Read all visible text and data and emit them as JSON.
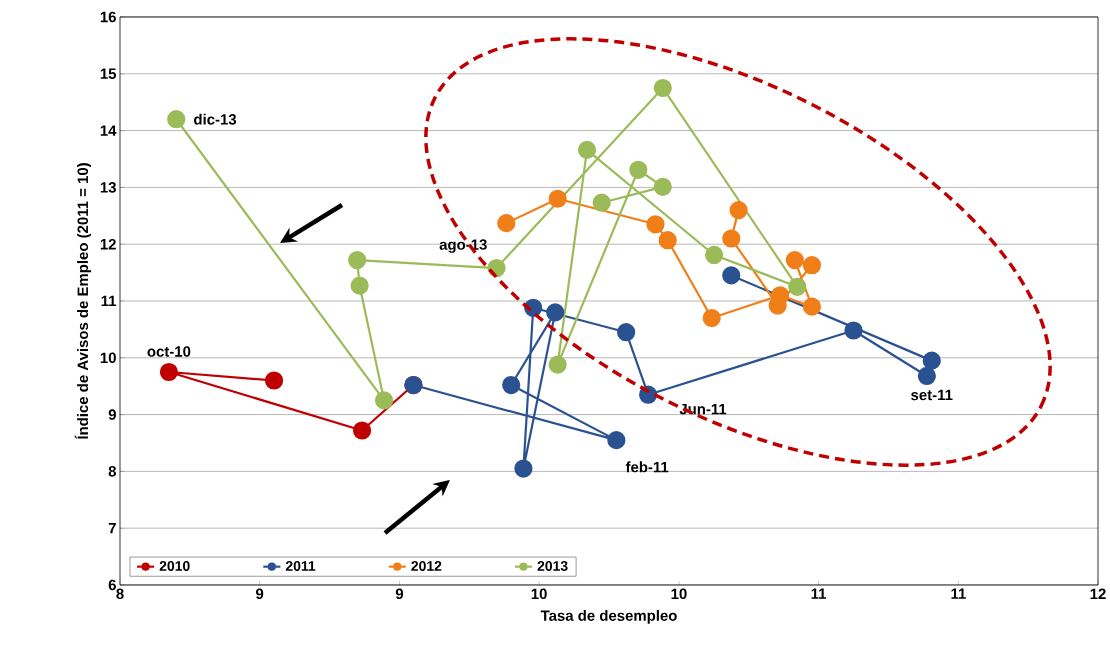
{
  "chart_data": {
    "type": "line",
    "xlabel": "Tasa de desempleo",
    "ylabel": "Índice de Avisos de Empleo (2011 = 10)",
    "xlim": [
      8,
      12
    ],
    "ylim": [
      6,
      16
    ],
    "xticks": [
      {
        "value": 8,
        "label": "8"
      },
      {
        "value": 8.571,
        "label": "9"
      },
      {
        "value": 9.143,
        "label": "9"
      },
      {
        "value": 9.714,
        "label": "10"
      },
      {
        "value": 10.286,
        "label": "10"
      },
      {
        "value": 10.857,
        "label": "11"
      },
      {
        "value": 11.429,
        "label": "11"
      },
      {
        "value": 12,
        "label": "12"
      }
    ],
    "yticks": [
      6,
      7,
      8,
      9,
      10,
      11,
      12,
      13,
      14,
      15,
      16
    ],
    "grid": "y",
    "legend": "bottom",
    "marker": "circle",
    "line_style": "solid",
    "series": [
      {
        "name": "2010",
        "color": "#c00000",
        "x": [
          8.63,
          8.2,
          8.99,
          9.2
        ],
        "values": [
          9.6,
          9.75,
          8.72,
          9.52
        ]
      },
      {
        "name": "2011",
        "color": "#2a5291",
        "x": [
          9.2,
          10.03,
          9.6,
          9.78,
          9.65,
          9.69,
          10.07,
          10.16,
          11.0,
          11.3,
          11.32,
          10.5
        ],
        "values": [
          9.52,
          8.55,
          9.52,
          10.8,
          8.05,
          10.88,
          10.45,
          9.35,
          10.48,
          9.68,
          9.95,
          11.45
        ]
      },
      {
        "name": "2012",
        "color": "#f07f1a",
        "x": [
          9.58,
          9.79,
          10.19,
          10.24,
          10.42,
          10.7,
          10.83,
          10.76,
          10.83,
          10.69,
          10.5,
          10.53
        ],
        "values": [
          12.37,
          12.8,
          12.35,
          12.07,
          10.7,
          11.1,
          10.9,
          11.72,
          11.63,
          10.92,
          12.1,
          12.6
        ]
      },
      {
        "name": "2013",
        "color": "#9bbb59",
        "x": [
          9.97,
          10.22,
          10.12,
          9.79,
          9.91,
          10.43,
          10.77,
          10.22,
          9.54,
          8.97,
          8.98,
          9.08,
          8.23
        ],
        "values": [
          12.73,
          13.01,
          13.31,
          9.88,
          13.66,
          11.81,
          11.25,
          14.75,
          11.58,
          11.72,
          11.27,
          9.25,
          14.2
        ]
      }
    ],
    "annotations": [
      {
        "text": "oct-10",
        "x": 8.2,
        "y": 9.75
      },
      {
        "text": "ago-13",
        "x": 9.54,
        "y": 11.58
      },
      {
        "text": "dic-13",
        "x": 8.23,
        "y": 14.2
      },
      {
        "text": "feb-11",
        "x": 10.03,
        "y": 8.55
      },
      {
        "text": "Jun-11",
        "x": 10.16,
        "y": 9.35
      },
      {
        "text": "set-11",
        "x": 11.32,
        "y": 9.95
      }
    ]
  }
}
